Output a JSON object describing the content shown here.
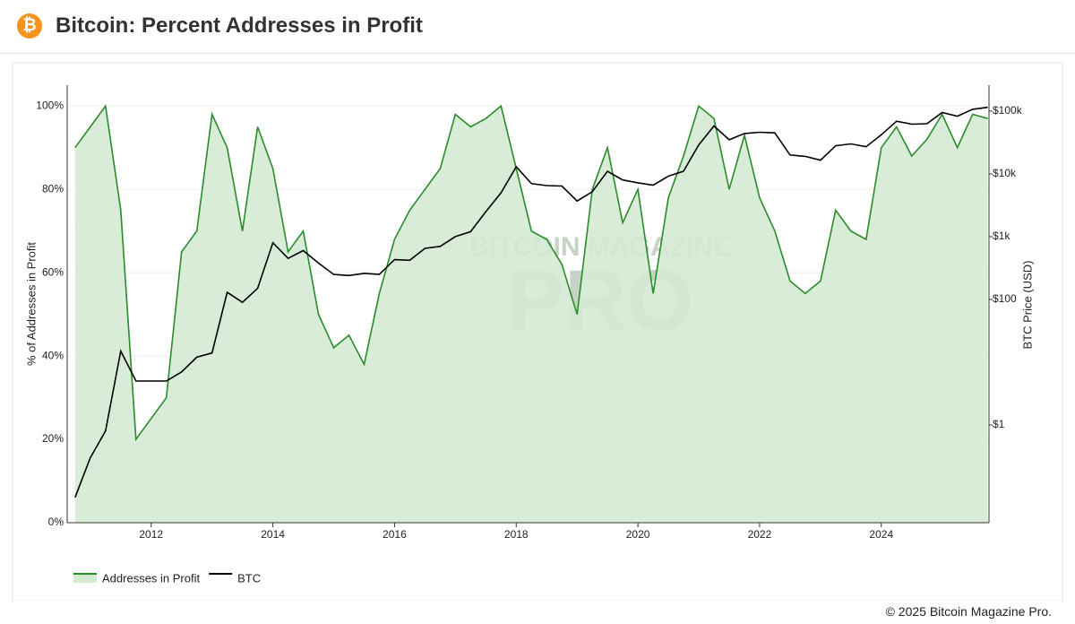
{
  "header": {
    "title": "Bitcoin: Percent Addresses in Profit"
  },
  "footer": "© 2025 Bitcoin Magazine Pro.",
  "chart_data": {
    "type": "line",
    "watermark": [
      "BITCOIN MAGAZINE",
      "PRO"
    ],
    "ylabel": "% of Addresses in Profit",
    "y2label": "BTC Price (USD)",
    "x": [
      2010.75,
      2011.0,
      2011.25,
      2011.5,
      2011.75,
      2012.0,
      2012.25,
      2012.5,
      2012.75,
      2013.0,
      2013.25,
      2013.5,
      2013.75,
      2014.0,
      2014.25,
      2014.5,
      2014.75,
      2015.0,
      2015.25,
      2015.5,
      2015.75,
      2016.0,
      2016.25,
      2016.5,
      2016.75,
      2017.0,
      2017.25,
      2017.5,
      2017.75,
      2018.0,
      2018.25,
      2018.5,
      2018.75,
      2019.0,
      2019.25,
      2019.5,
      2019.75,
      2020.0,
      2020.25,
      2020.5,
      2020.75,
      2021.0,
      2021.25,
      2021.5,
      2021.75,
      2022.0,
      2022.25,
      2022.5,
      2022.75,
      2023.0,
      2023.25,
      2023.5,
      2023.75,
      2024.0,
      2024.25,
      2024.5,
      2024.75,
      2025.0,
      2025.25,
      2025.5,
      2025.75
    ],
    "xlim": [
      2010.62,
      2025.77
    ],
    "xticks": [
      2012,
      2014,
      2016,
      2018,
      2020,
      2022,
      2024
    ],
    "ylim": [
      0,
      105
    ],
    "yticks": [
      {
        "value": 0,
        "label": "0%"
      },
      {
        "value": 20,
        "label": "20%"
      },
      {
        "value": 40,
        "label": "40%"
      },
      {
        "value": 60,
        "label": "60%"
      },
      {
        "value": 80,
        "label": "80%"
      },
      {
        "value": 100,
        "label": "100%"
      }
    ],
    "y2lim": [
      0.0277,
      259000
    ],
    "y2_scale": "log",
    "y2ticks": [
      {
        "value": 1,
        "label": "$1"
      },
      {
        "value": 100,
        "label": "$100"
      },
      {
        "value": 1000,
        "label": "$1k"
      },
      {
        "value": 10000,
        "label": "$10k"
      },
      {
        "value": 100000,
        "label": "$100k"
      }
    ],
    "grid": true,
    "series": [
      {
        "name": "Addresses in Profit",
        "color": "#2a8c2a",
        "fill": "#d4ead3",
        "values": [
          90,
          95,
          100,
          75,
          20,
          25,
          30,
          65,
          70,
          98,
          90,
          70,
          95,
          85,
          65,
          70,
          50,
          42,
          45,
          38,
          55,
          68,
          75,
          80,
          85,
          98,
          95,
          97,
          100,
          85,
          70,
          68,
          62,
          50,
          80,
          90,
          72,
          80,
          55,
          78,
          88,
          100,
          97,
          80,
          93,
          78,
          70,
          58,
          55,
          58,
          75,
          70,
          68,
          90,
          95,
          88,
          92,
          98,
          90,
          98,
          97
        ]
      },
      {
        "name": "BTC",
        "color": "#000000",
        "axis": "y2",
        "values": [
          0.07,
          0.3,
          0.8,
          15,
          5,
          5,
          5,
          7,
          12,
          14,
          130,
          90,
          150,
          800,
          450,
          600,
          380,
          250,
          240,
          260,
          250,
          430,
          420,
          650,
          700,
          1000,
          1200,
          2500,
          5000,
          13000,
          7000,
          6500,
          6400,
          3700,
          5200,
          11000,
          8000,
          7200,
          6600,
          9200,
          11000,
          29000,
          58000,
          35000,
          44000,
          46000,
          45000,
          20000,
          19000,
          16500,
          28000,
          30000,
          27000,
          42000,
          69000,
          62000,
          63000,
          95000,
          83000,
          107000,
          115000
        ]
      }
    ]
  }
}
